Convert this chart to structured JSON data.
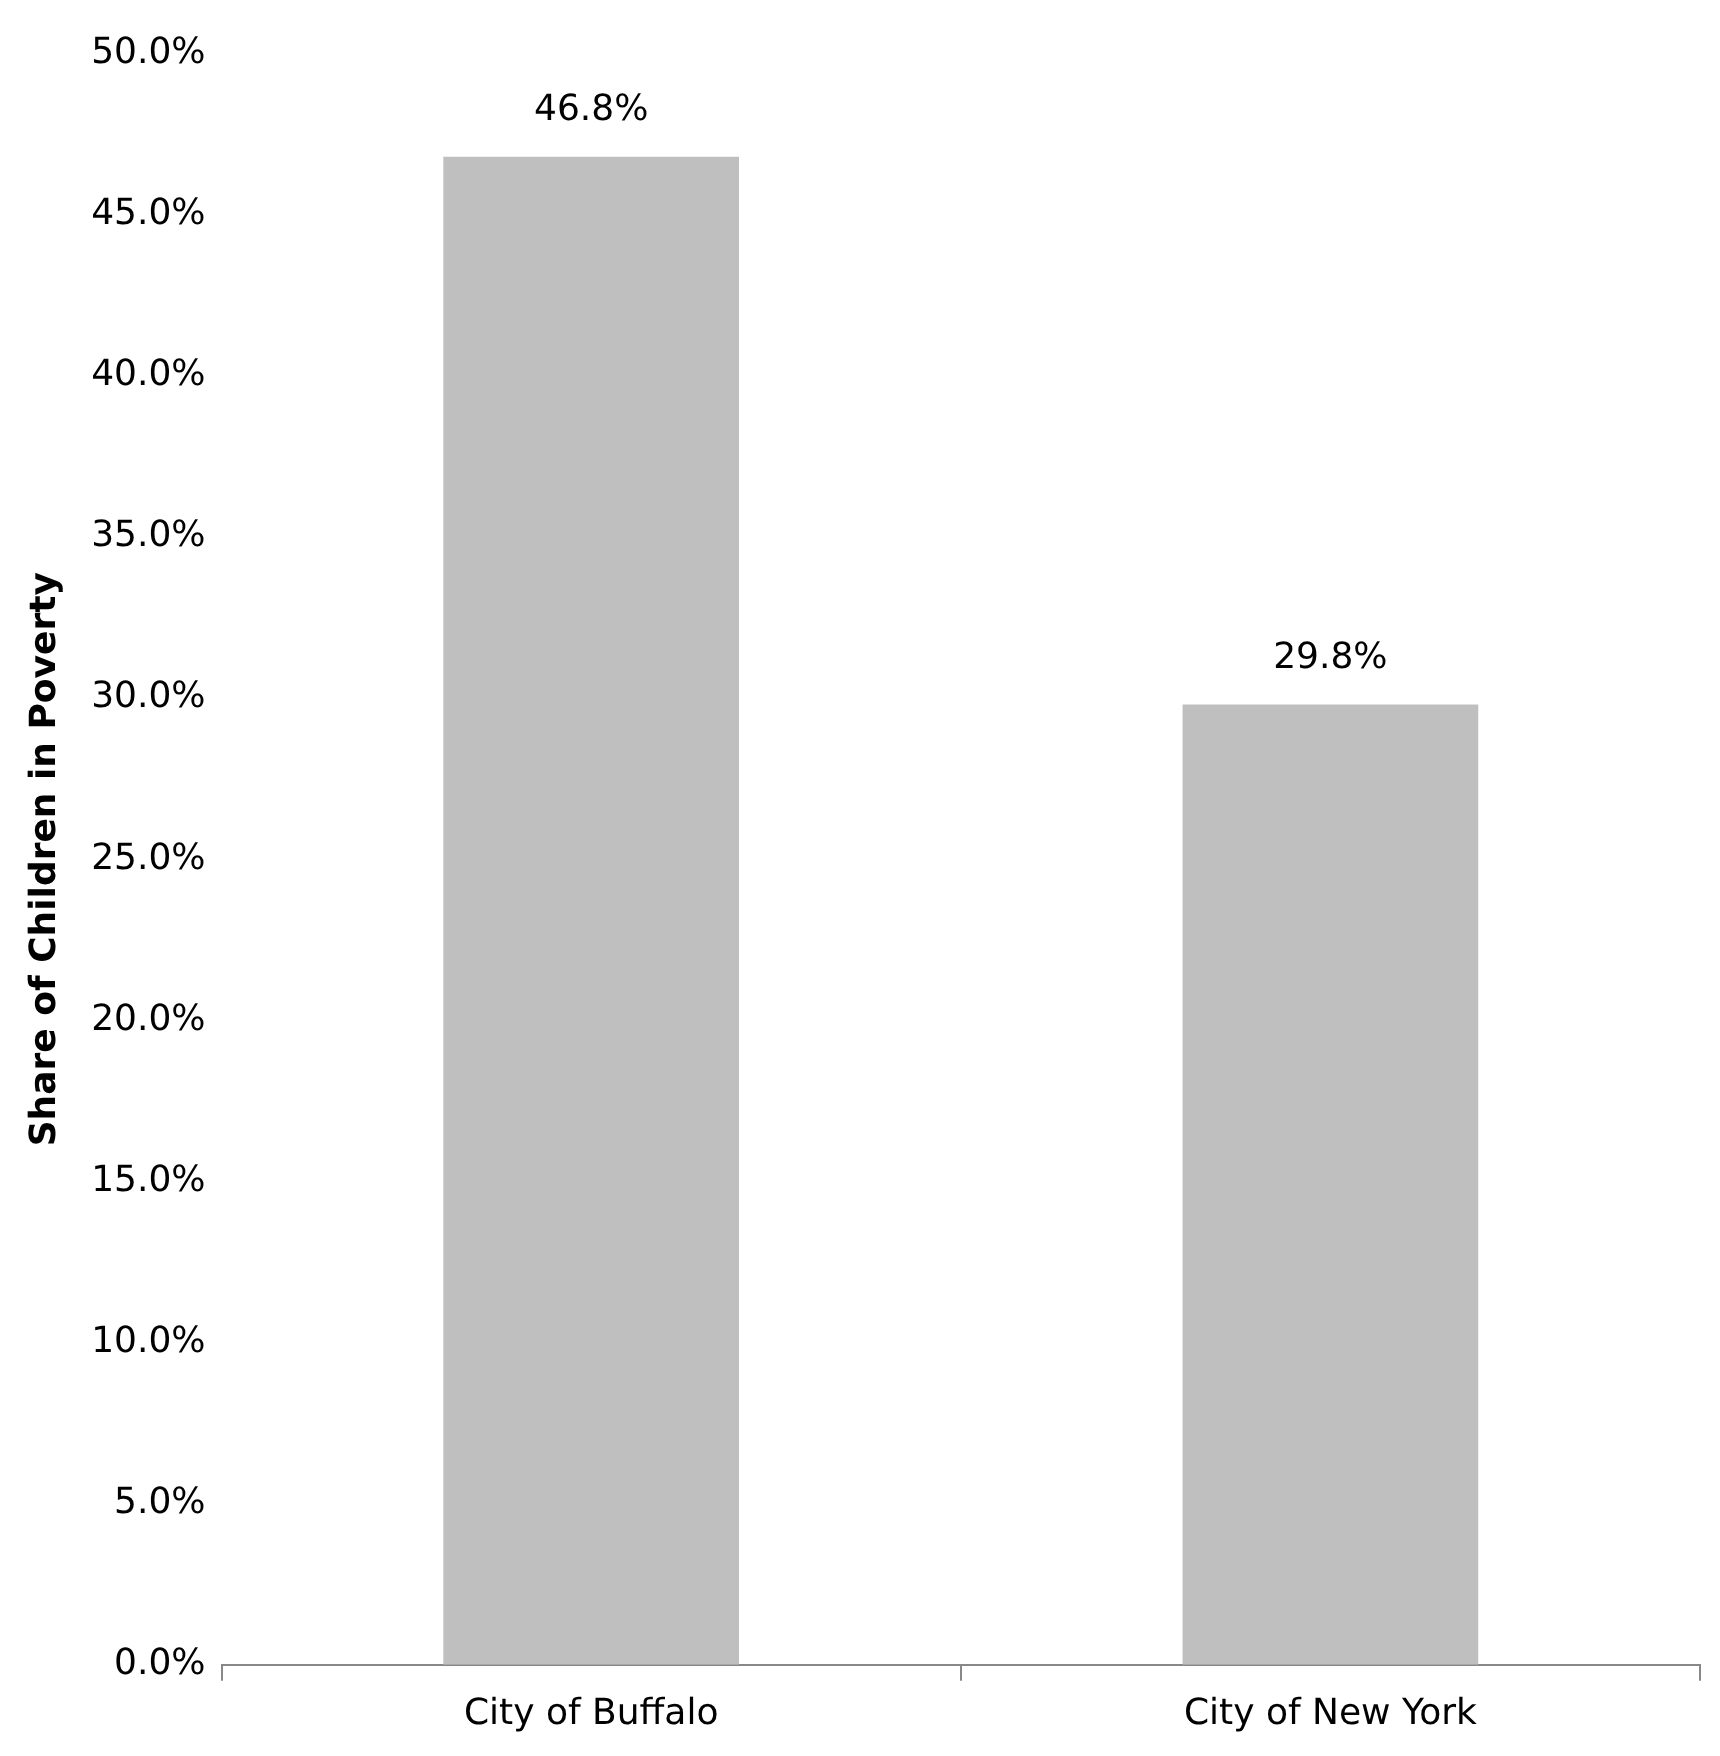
{
  "chart_data": {
    "type": "bar",
    "ylabel": "Share of Children in Poverty",
    "categories": [
      "City of Buffalo",
      "City of New York"
    ],
    "values": [
      46.8,
      29.8
    ],
    "color": "#bfbfbf",
    "value_labels": [
      "46.8%",
      "29.8%"
    ],
    "ylim": [
      0,
      50
    ],
    "yticks": [
      {
        "value": 0,
        "label": "0.0%"
      },
      {
        "value": 5,
        "label": "5.0%"
      },
      {
        "value": 10,
        "label": "10.0%"
      },
      {
        "value": 15,
        "label": "15.0%"
      },
      {
        "value": 20,
        "label": "20.0%"
      },
      {
        "value": 25,
        "label": "25.0%"
      },
      {
        "value": 30,
        "label": "30.0%"
      },
      {
        "value": 35,
        "label": "35.0%"
      },
      {
        "value": 40,
        "label": "40.0%"
      },
      {
        "value": 45,
        "label": "45.0%"
      },
      {
        "value": 50,
        "label": "50.0%"
      }
    ],
    "grid": false,
    "legend": false
  }
}
